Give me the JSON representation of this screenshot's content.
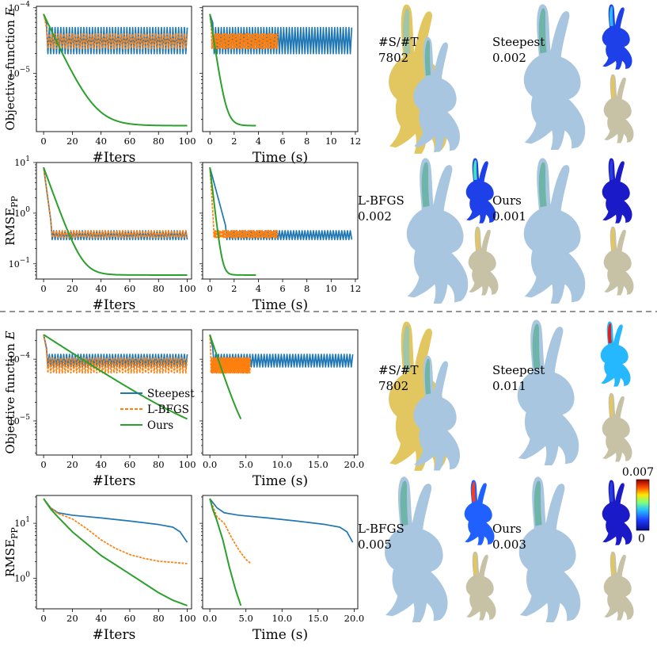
{
  "colors": {
    "steepest": "#1f77b4",
    "lbfgs": "#ff7f0e",
    "ours": "#2ca02c",
    "bunny_body": "#a9c6e0",
    "bunny_target": "#e2c660",
    "ear_inner": "#6fb4a8",
    "divider": "#555555"
  },
  "labels": {
    "ylabel_objective": "Objective function E",
    "ylabel_rmse": "RMSE",
    "ylabel_rmse_sub": "PP",
    "xlabel_iters": "#Iters",
    "xlabel_time": "Time (s)"
  },
  "legend": [
    "Steepest",
    "L-BFGS",
    "Ours"
  ],
  "colorbar": {
    "max": "0.007",
    "min": "0"
  },
  "renders": {
    "top": [
      {
        "name": "#S/#T",
        "value": "7802"
      },
      {
        "name": "Steepest",
        "value": "0.002"
      },
      {
        "name": "L-BFGS",
        "value": "0.002"
      },
      {
        "name": "Ours",
        "value": "0.001"
      }
    ],
    "bottom": [
      {
        "name": "#S/#T",
        "value": "7802"
      },
      {
        "name": "Steepest",
        "value": "0.011"
      },
      {
        "name": "L-BFGS",
        "value": "0.005"
      },
      {
        "name": "Ours",
        "value": "0.003"
      }
    ]
  },
  "chart_data": [
    {
      "id": "top-obj-iters",
      "type": "line",
      "xlabel": "#Iters",
      "ylabel": "Objective function E",
      "yscale": "log",
      "xlim": [
        -5,
        103
      ],
      "ylim": [
        1.3e-06,
        0.000105
      ],
      "xticks": [
        0,
        20,
        40,
        60,
        80,
        100
      ],
      "yticks": [
        1e-05,
        0.0001
      ],
      "series": [
        {
          "name": "Steepest",
          "kind": "osc",
          "start": 8e-05,
          "steps": 3,
          "lo": 2e-05,
          "hi": 5e-05,
          "x0": 0,
          "x1": 100,
          "n": 100
        },
        {
          "name": "L-BFGS",
          "kind": "osc",
          "start": 8e-05,
          "steps": 3,
          "lo": 2.4e-05,
          "hi": 4e-05,
          "x0": 0,
          "x1": 100,
          "n": 100,
          "dash": true
        },
        {
          "name": "Ours",
          "kind": "decay",
          "start": 8e-05,
          "end": 1.6e-06,
          "rate": 0.11,
          "x0": 0,
          "x1": 100,
          "n": 100
        }
      ]
    },
    {
      "id": "top-obj-time",
      "type": "line",
      "xlabel": "Time (s)",
      "yscale": "log",
      "xlim": [
        -0.6,
        12.2
      ],
      "ylim": [
        1.3e-06,
        0.000105
      ],
      "xticks": [
        0,
        2,
        4,
        6,
        8,
        10,
        12
      ],
      "yticks": [],
      "series": [
        {
          "name": "Steepest",
          "kind": "osc",
          "start": 8e-05,
          "steps": 3,
          "lo": 2e-05,
          "hi": 5e-05,
          "x0": 0,
          "x1": 11.7,
          "n": 100
        },
        {
          "name": "L-BFGS",
          "kind": "osc",
          "start": 8e-05,
          "steps": 3,
          "lo": 2.4e-05,
          "hi": 4e-05,
          "x0": 0,
          "x1": 5.6,
          "n": 100,
          "dash": true
        },
        {
          "name": "Ours",
          "kind": "decay",
          "start": 8e-05,
          "end": 1.6e-06,
          "rate": 0.11,
          "x0": 0,
          "x1": 3.8,
          "n": 100
        }
      ]
    },
    {
      "id": "top-rmse-iters",
      "type": "line",
      "xlabel": "#Iters",
      "ylabel": "RMSE_PP",
      "yscale": "log",
      "xlim": [
        -5,
        103
      ],
      "ylim": [
        0.05,
        10
      ],
      "xticks": [
        0,
        20,
        40,
        60,
        80,
        100
      ],
      "yticks": [
        0.1,
        1,
        10
      ],
      "series": [
        {
          "name": "Steepest",
          "kind": "osc",
          "start": 8,
          "steps": 6,
          "lo": 0.3,
          "hi": 0.45,
          "x0": 0,
          "x1": 100,
          "n": 100
        },
        {
          "name": "L-BFGS",
          "kind": "osc",
          "start": 8,
          "steps": 6,
          "lo": 0.33,
          "hi": 0.45,
          "x0": 0,
          "x1": 100,
          "n": 100,
          "dash": true
        },
        {
          "name": "Ours",
          "kind": "decay",
          "start": 8,
          "end": 0.06,
          "rate": 0.18,
          "x0": 0,
          "x1": 100,
          "n": 100
        }
      ]
    },
    {
      "id": "top-rmse-time",
      "type": "line",
      "xlabel": "Time (s)",
      "yscale": "log",
      "xlim": [
        -0.6,
        12.2
      ],
      "ylim": [
        0.05,
        10
      ],
      "xticks": [
        0,
        2,
        4,
        6,
        8,
        10,
        12
      ],
      "yticks": [],
      "series": [
        {
          "name": "Steepest",
          "kind": "osc",
          "start": 8,
          "steps": 12,
          "lo": 0.3,
          "hi": 0.45,
          "x0": 0,
          "x1": 11.7,
          "n": 100
        },
        {
          "name": "L-BFGS",
          "kind": "osc",
          "start": 8,
          "steps": 6,
          "lo": 0.33,
          "hi": 0.45,
          "x0": 0,
          "x1": 5.6,
          "n": 100,
          "dash": true
        },
        {
          "name": "Ours",
          "kind": "decay",
          "start": 8,
          "end": 0.06,
          "rate": 0.18,
          "x0": 0,
          "x1": 3.8,
          "n": 100
        }
      ]
    },
    {
      "id": "bot-obj-iters",
      "type": "line",
      "xlabel": "#Iters",
      "ylabel": "Objective function E",
      "yscale": "log",
      "xlim": [
        -5,
        103
      ],
      "ylim": [
        2.8e-06,
        0.0003
      ],
      "xticks": [
        0,
        20,
        40,
        60,
        80,
        100
      ],
      "yticks": [
        1e-05,
        0.0001
      ],
      "series": [
        {
          "name": "Steepest",
          "kind": "osc",
          "start": 0.00025,
          "steps": 3,
          "lo": 7.5e-05,
          "hi": 0.00012,
          "x0": 0,
          "x1": 100,
          "n": 100
        },
        {
          "name": "L-BFGS",
          "kind": "osc",
          "start": 0.00025,
          "steps": 3,
          "lo": 6e-05,
          "hi": 0.000105,
          "x0": 0,
          "x1": 100,
          "n": 100,
          "dash": true
        },
        {
          "name": "Ours",
          "kind": "decay",
          "start": 0.00025,
          "end": 3.3e-06,
          "rate": 0.035,
          "x0": 0,
          "x1": 100,
          "n": 100
        }
      ]
    },
    {
      "id": "bot-obj-time",
      "type": "line",
      "xlabel": "Time (s)",
      "yscale": "log",
      "xlim": [
        -1,
        20.5
      ],
      "ylim": [
        2.8e-06,
        0.0003
      ],
      "xticks": [
        0,
        5,
        10,
        15,
        20
      ],
      "xticklabels": [
        "0.0",
        "5.0",
        "10.0",
        "15.0",
        "20.0"
      ],
      "yticks": [],
      "series": [
        {
          "name": "Steepest",
          "kind": "osc",
          "start": 0.00025,
          "steps": 3,
          "lo": 7.5e-05,
          "hi": 0.00012,
          "x0": 0,
          "x1": 19.8,
          "n": 100
        },
        {
          "name": "L-BFGS",
          "kind": "osc",
          "start": 0.00025,
          "steps": 3,
          "lo": 6e-05,
          "hi": 0.000105,
          "x0": 0,
          "x1": 5.6,
          "n": 100,
          "dash": true
        },
        {
          "name": "Ours",
          "kind": "decay",
          "start": 0.00025,
          "end": 3.3e-06,
          "rate": 0.035,
          "x0": 0,
          "x1": 4.3,
          "n": 100
        }
      ]
    },
    {
      "id": "bot-rmse-iters",
      "type": "line",
      "xlabel": "#Iters",
      "ylabel": "RMSE_PP",
      "yscale": "log",
      "xlim": [
        -5,
        103
      ],
      "ylim": [
        0.28,
        32
      ],
      "xticks": [
        0,
        20,
        40,
        60,
        80,
        100
      ],
      "yticks": [
        1,
        10
      ],
      "series": [
        {
          "name": "Steepest",
          "kind": "curve",
          "pts": [
            [
              0,
              28
            ],
            [
              5,
              19
            ],
            [
              10,
              15.5
            ],
            [
              20,
              14
            ],
            [
              40,
              12.5
            ],
            [
              60,
              11
            ],
            [
              80,
              9.5
            ],
            [
              90,
              8.5
            ],
            [
              95,
              7
            ],
            [
              100,
              4.5
            ]
          ]
        },
        {
          "name": "L-BFGS",
          "kind": "curve",
          "dash": true,
          "pts": [
            [
              0,
              28
            ],
            [
              5,
              19
            ],
            [
              10,
              15
            ],
            [
              20,
              12
            ],
            [
              30,
              8
            ],
            [
              40,
              5
            ],
            [
              50,
              3.5
            ],
            [
              60,
              2.7
            ],
            [
              70,
              2.3
            ],
            [
              80,
              2.05
            ],
            [
              90,
              1.95
            ],
            [
              100,
              1.85
            ]
          ]
        },
        {
          "name": "Ours",
          "kind": "curve",
          "pts": [
            [
              0,
              28
            ],
            [
              5,
              18
            ],
            [
              10,
              13
            ],
            [
              20,
              7
            ],
            [
              40,
              2.6
            ],
            [
              60,
              1.2
            ],
            [
              80,
              0.55
            ],
            [
              90,
              0.4
            ],
            [
              100,
              0.32
            ]
          ]
        }
      ]
    },
    {
      "id": "bot-rmse-time",
      "type": "line",
      "xlabel": "Time (s)",
      "yscale": "log",
      "xlim": [
        -1,
        20.5
      ],
      "ylim": [
        0.28,
        32
      ],
      "xticks": [
        0,
        5,
        10,
        15,
        20
      ],
      "xticklabels": [
        "0.0",
        "5.0",
        "10.0",
        "15.0",
        "20.0"
      ],
      "yticks": [],
      "series": [
        {
          "name": "Steepest",
          "kind": "curve",
          "pts": [
            [
              0,
              28
            ],
            [
              1,
              19
            ],
            [
              2,
              15.5
            ],
            [
              4,
              14
            ],
            [
              8,
              12.5
            ],
            [
              12,
              11
            ],
            [
              16,
              9.5
            ],
            [
              18,
              8.5
            ],
            [
              19,
              7
            ],
            [
              19.8,
              4.5
            ]
          ]
        },
        {
          "name": "L-BFGS",
          "kind": "curve",
          "dash": true,
          "pts": [
            [
              0,
              28
            ],
            [
              0.5,
              19
            ],
            [
              1,
              13
            ],
            [
              2,
              10
            ],
            [
              3,
              5.5
            ],
            [
              4,
              3.3
            ],
            [
              5,
              2.2
            ],
            [
              5.6,
              1.9
            ]
          ]
        },
        {
          "name": "Ours",
          "kind": "curve",
          "pts": [
            [
              0,
              28
            ],
            [
              0.4,
              18
            ],
            [
              0.9,
              12
            ],
            [
              1.8,
              5
            ],
            [
              2.7,
              1.6
            ],
            [
              3.6,
              0.6
            ],
            [
              4.3,
              0.32
            ]
          ]
        }
      ]
    }
  ]
}
